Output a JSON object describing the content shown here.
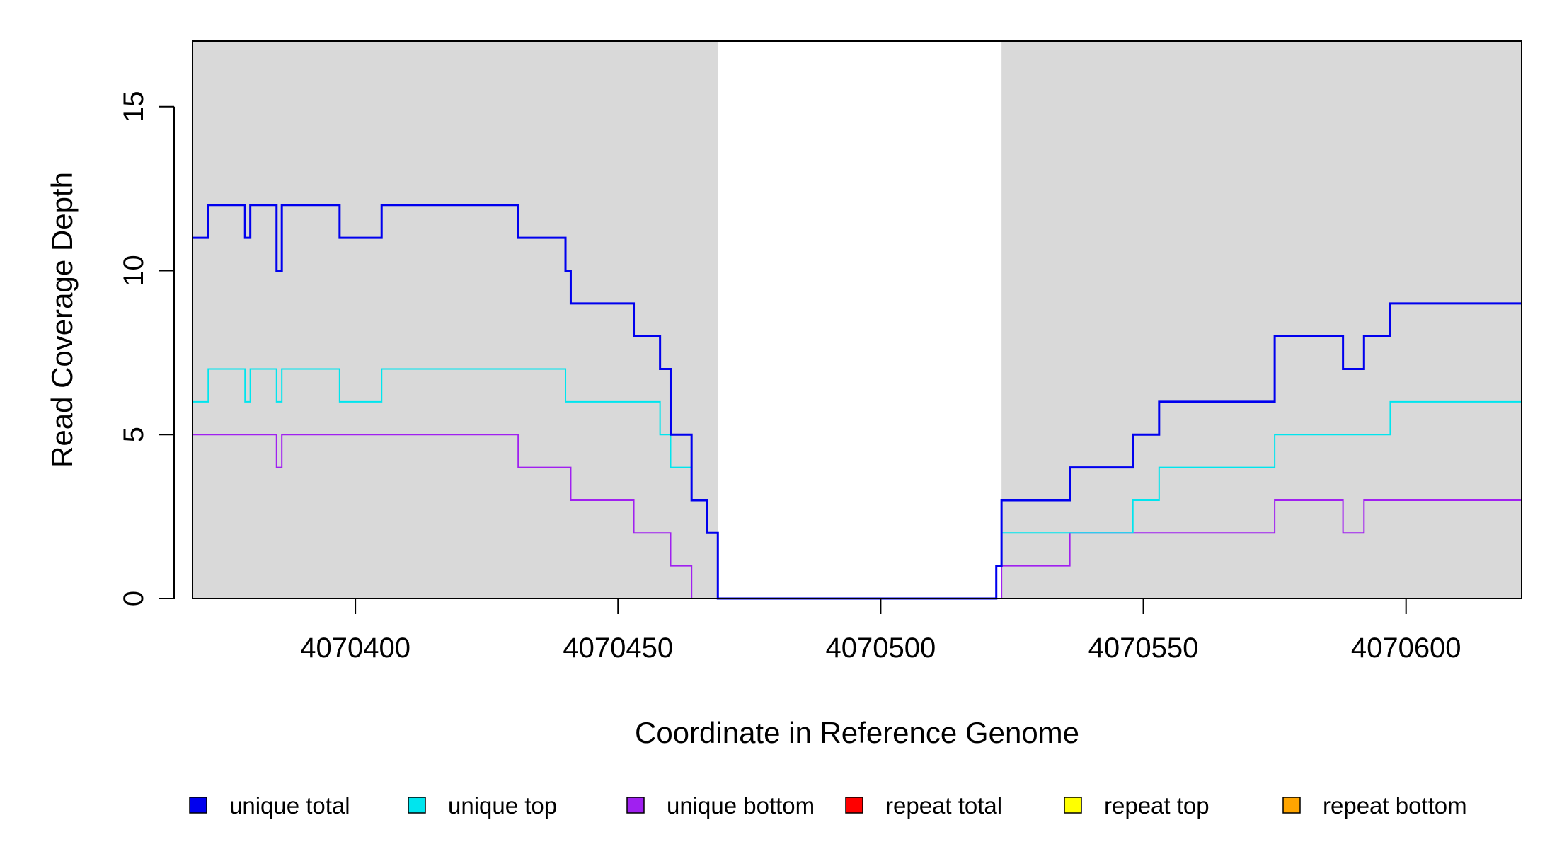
{
  "chart_data": {
    "type": "line",
    "xlabel": "Coordinate in Reference Genome",
    "ylabel": "Read Coverage Depth",
    "xlim": [
      4070369,
      4070622
    ],
    "ylim": [
      0,
      17
    ],
    "x_ticks": [
      4070400,
      4070450,
      4070500,
      4070550,
      4070600
    ],
    "x_tick_labels": [
      "4070400",
      "4070450",
      "4070500",
      "4070550",
      "4070600"
    ],
    "y_ticks": [
      0,
      5,
      10,
      15
    ],
    "y_tick_labels": [
      "0",
      "5",
      "10",
      "15"
    ],
    "shaded_regions": [
      [
        4070369,
        4070469
      ],
      [
        4070523,
        4070622
      ]
    ],
    "shade_color": "#d9d9d9",
    "series": [
      {
        "name": "unique total",
        "color": "#0000ee",
        "step_points": [
          [
            4070369,
            11
          ],
          [
            4070372,
            12
          ],
          [
            4070379,
            11
          ],
          [
            4070380,
            12
          ],
          [
            4070385,
            10
          ],
          [
            4070386,
            12
          ],
          [
            4070397,
            11
          ],
          [
            4070405,
            12
          ],
          [
            4070431,
            11
          ],
          [
            4070440,
            10
          ],
          [
            4070441,
            9
          ],
          [
            4070453,
            8
          ],
          [
            4070458,
            7
          ],
          [
            4070460,
            5
          ],
          [
            4070464,
            3
          ],
          [
            4070467,
            2
          ],
          [
            4070469,
            0
          ],
          [
            4070522,
            1
          ],
          [
            4070523,
            3
          ],
          [
            4070536,
            4
          ],
          [
            4070548,
            5
          ],
          [
            4070553,
            6
          ],
          [
            4070575,
            8
          ],
          [
            4070588,
            7
          ],
          [
            4070592,
            8
          ],
          [
            4070597,
            9
          ],
          [
            4070622,
            9
          ]
        ]
      },
      {
        "name": "unique top",
        "color": "#00e5ee",
        "step_points": [
          [
            4070369,
            6
          ],
          [
            4070372,
            7
          ],
          [
            4070379,
            6
          ],
          [
            4070380,
            7
          ],
          [
            4070385,
            6
          ],
          [
            4070386,
            7
          ],
          [
            4070397,
            6
          ],
          [
            4070405,
            7
          ],
          [
            4070440,
            6
          ],
          [
            4070458,
            5
          ],
          [
            4070460,
            4
          ],
          [
            4070464,
            3
          ],
          [
            4070467,
            2
          ],
          [
            4070469,
            0
          ],
          [
            4070522,
            1
          ],
          [
            4070523,
            2
          ],
          [
            4070548,
            3
          ],
          [
            4070553,
            4
          ],
          [
            4070575,
            5
          ],
          [
            4070597,
            6
          ],
          [
            4070622,
            6
          ]
        ]
      },
      {
        "name": "unique bottom",
        "color": "#a020f0",
        "step_points": [
          [
            4070369,
            5
          ],
          [
            4070385,
            4
          ],
          [
            4070386,
            5
          ],
          [
            4070431,
            4
          ],
          [
            4070441,
            3
          ],
          [
            4070453,
            2
          ],
          [
            4070460,
            1
          ],
          [
            4070464,
            0
          ],
          [
            4070523,
            1
          ],
          [
            4070536,
            2
          ],
          [
            4070575,
            3
          ],
          [
            4070588,
            2
          ],
          [
            4070592,
            3
          ],
          [
            4070622,
            3
          ]
        ]
      },
      {
        "name": "repeat total",
        "color": "#ff0000",
        "step_points": [
          [
            4070369,
            0
          ],
          [
            4070622,
            0
          ]
        ]
      },
      {
        "name": "repeat top",
        "color": "#ffff00",
        "step_points": [
          [
            4070369,
            0
          ],
          [
            4070622,
            0
          ]
        ]
      },
      {
        "name": "repeat bottom",
        "color": "#ffa500",
        "step_points": [
          [
            4070369,
            0
          ],
          [
            4070622,
            0
          ]
        ]
      }
    ]
  }
}
